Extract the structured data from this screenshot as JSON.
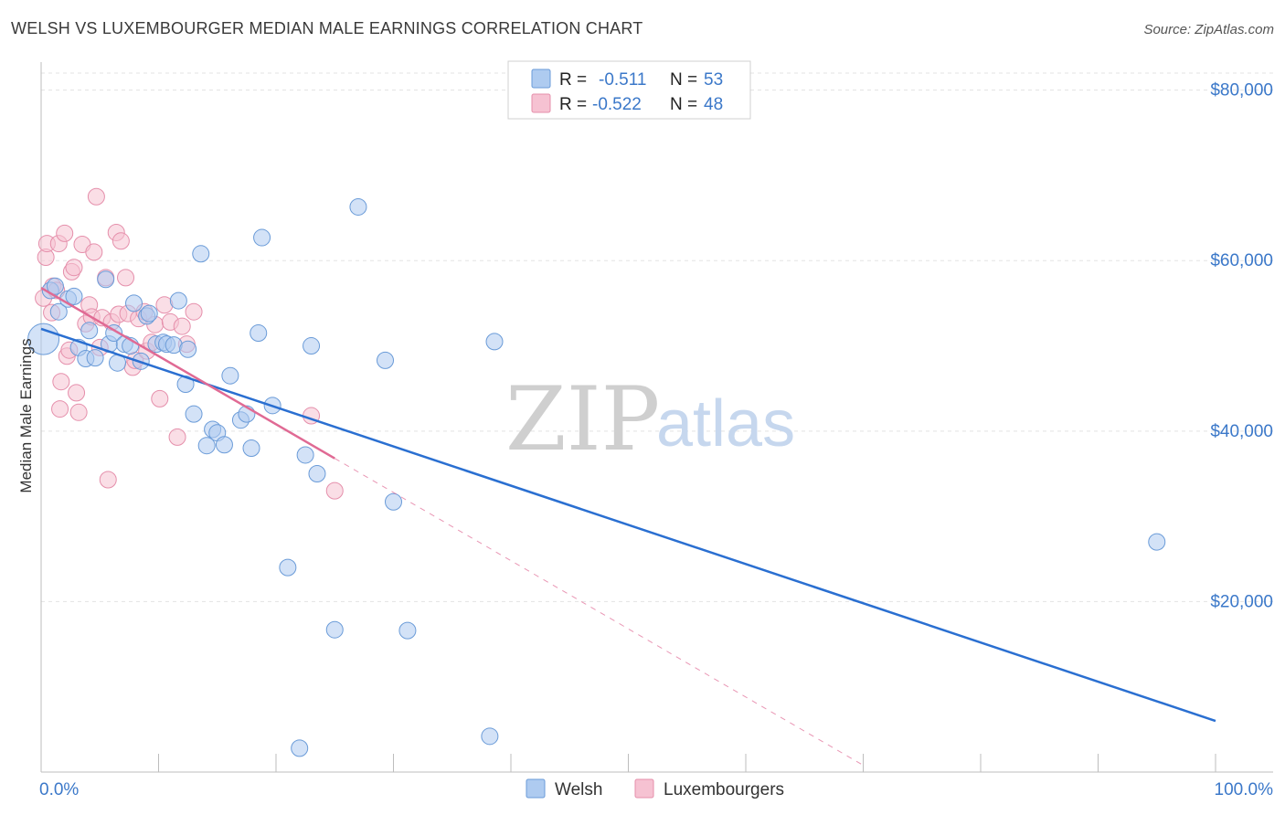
{
  "title": "WELSH VS LUXEMBOURGER MEDIAN MALE EARNINGS CORRELATION CHART",
  "source": "Source: ZipAtlas.com",
  "watermark": {
    "zip": "ZIP",
    "atlas": "atlas"
  },
  "colors": {
    "welsh_fill": "#aecbf0",
    "welsh_stroke": "#6a9bd8",
    "welsh_line": "#2a6fd1",
    "lux_fill": "#f6c2d2",
    "lux_stroke": "#e58fab",
    "lux_line": "#e06a94",
    "grid": "#e3e3e3",
    "accent_text": "#3b78c9"
  },
  "legend": {
    "rows": [
      {
        "r_label": "R =",
        "r_value": "-0.511",
        "n_label": "N =",
        "n_value": "53"
      },
      {
        "r_label": "R =",
        "r_value": "-0.522",
        "n_label": "N =",
        "n_value": "48"
      }
    ]
  },
  "bottom_legend": [
    "Welsh",
    "Luxembourgers"
  ],
  "chart_data": {
    "type": "scatter",
    "title": "WELSH VS LUXEMBOURGER MEDIAN MALE EARNINGS CORRELATION CHART",
    "xlabel": "",
    "ylabel": "Median Male Earnings",
    "xlim": [
      0,
      100
    ],
    "ylim": [
      0,
      82000
    ],
    "x_tick_labels": [
      "0.0%",
      "100.0%"
    ],
    "y_ticks": [
      {
        "value": 20000,
        "label": "$20,000"
      },
      {
        "value": 40000,
        "label": "$40,000"
      },
      {
        "value": 60000,
        "label": "$60,000"
      },
      {
        "value": 80000,
        "label": "$80,000"
      }
    ],
    "series": [
      {
        "name": "Welsh",
        "r": -0.511,
        "n": 53,
        "trend": {
          "x0": 0,
          "y0": 52000,
          "x1": 100,
          "y1": 6000
        },
        "points": [
          [
            0.2,
            50800
          ],
          [
            0.8,
            56500
          ],
          [
            1.2,
            57000
          ],
          [
            1.5,
            54000
          ],
          [
            2.3,
            55500
          ],
          [
            2.8,
            55800
          ],
          [
            3.2,
            49800
          ],
          [
            3.8,
            48500
          ],
          [
            4.1,
            51800
          ],
          [
            4.6,
            48600
          ],
          [
            5.5,
            57800
          ],
          [
            5.8,
            50200
          ],
          [
            6.2,
            51500
          ],
          [
            6.5,
            48000
          ],
          [
            7.1,
            50200
          ],
          [
            7.6,
            50000
          ],
          [
            7.9,
            55000
          ],
          [
            8.5,
            48200
          ],
          [
            9.0,
            53500
          ],
          [
            9.2,
            53800
          ],
          [
            9.8,
            50200
          ],
          [
            10.4,
            50400
          ],
          [
            10.7,
            50200
          ],
          [
            11.3,
            50100
          ],
          [
            11.7,
            55300
          ],
          [
            12.3,
            45500
          ],
          [
            12.5,
            49600
          ],
          [
            13.0,
            42000
          ],
          [
            13.6,
            60800
          ],
          [
            14.1,
            38300
          ],
          [
            14.6,
            40200
          ],
          [
            15.0,
            39800
          ],
          [
            15.6,
            38400
          ],
          [
            16.1,
            46500
          ],
          [
            17.0,
            41300
          ],
          [
            17.5,
            42000
          ],
          [
            17.9,
            38000
          ],
          [
            18.5,
            51500
          ],
          [
            18.8,
            62700
          ],
          [
            19.7,
            43000
          ],
          [
            21.0,
            24000
          ],
          [
            22.0,
            2800
          ],
          [
            22.5,
            37200
          ],
          [
            23.0,
            50000
          ],
          [
            23.5,
            35000
          ],
          [
            25.0,
            16700
          ],
          [
            27.0,
            66300
          ],
          [
            29.3,
            48300
          ],
          [
            30.0,
            31700
          ],
          [
            31.2,
            16600
          ],
          [
            38.2,
            4200
          ],
          [
            38.6,
            50500
          ],
          [
            95.0,
            27000
          ]
        ]
      },
      {
        "name": "Luxembourgers",
        "r": -0.522,
        "n": 48,
        "trend": {
          "x0": 0,
          "y0": 56800,
          "x1": 25,
          "y1": 36800,
          "dash_to_x": 70,
          "dash_to_y": 800
        },
        "points": [
          [
            0.2,
            55600
          ],
          [
            0.4,
            60400
          ],
          [
            0.5,
            62000
          ],
          [
            0.9,
            53900
          ],
          [
            1.0,
            57000
          ],
          [
            1.3,
            56500
          ],
          [
            1.5,
            62000
          ],
          [
            1.6,
            42600
          ],
          [
            1.7,
            45800
          ],
          [
            2.0,
            63200
          ],
          [
            2.2,
            48800
          ],
          [
            2.4,
            49500
          ],
          [
            2.6,
            58700
          ],
          [
            2.8,
            59200
          ],
          [
            3.0,
            44500
          ],
          [
            3.2,
            42200
          ],
          [
            3.5,
            61900
          ],
          [
            3.8,
            52600
          ],
          [
            4.1,
            54800
          ],
          [
            4.3,
            53400
          ],
          [
            4.5,
            61000
          ],
          [
            4.7,
            67500
          ],
          [
            5.0,
            49800
          ],
          [
            5.2,
            53300
          ],
          [
            5.5,
            58000
          ],
          [
            5.7,
            34300
          ],
          [
            6.0,
            52800
          ],
          [
            6.4,
            63300
          ],
          [
            6.6,
            53700
          ],
          [
            6.8,
            62300
          ],
          [
            7.2,
            58000
          ],
          [
            7.4,
            53800
          ],
          [
            7.8,
            47500
          ],
          [
            8.0,
            48300
          ],
          [
            8.3,
            53200
          ],
          [
            8.8,
            54000
          ],
          [
            9.0,
            49400
          ],
          [
            9.4,
            50400
          ],
          [
            9.7,
            52500
          ],
          [
            10.1,
            43800
          ],
          [
            10.5,
            54800
          ],
          [
            11.0,
            52800
          ],
          [
            11.6,
            39300
          ],
          [
            12.0,
            52300
          ],
          [
            12.4,
            50200
          ],
          [
            13.0,
            54000
          ],
          [
            23.0,
            41800
          ],
          [
            25.0,
            33000
          ]
        ]
      }
    ]
  }
}
